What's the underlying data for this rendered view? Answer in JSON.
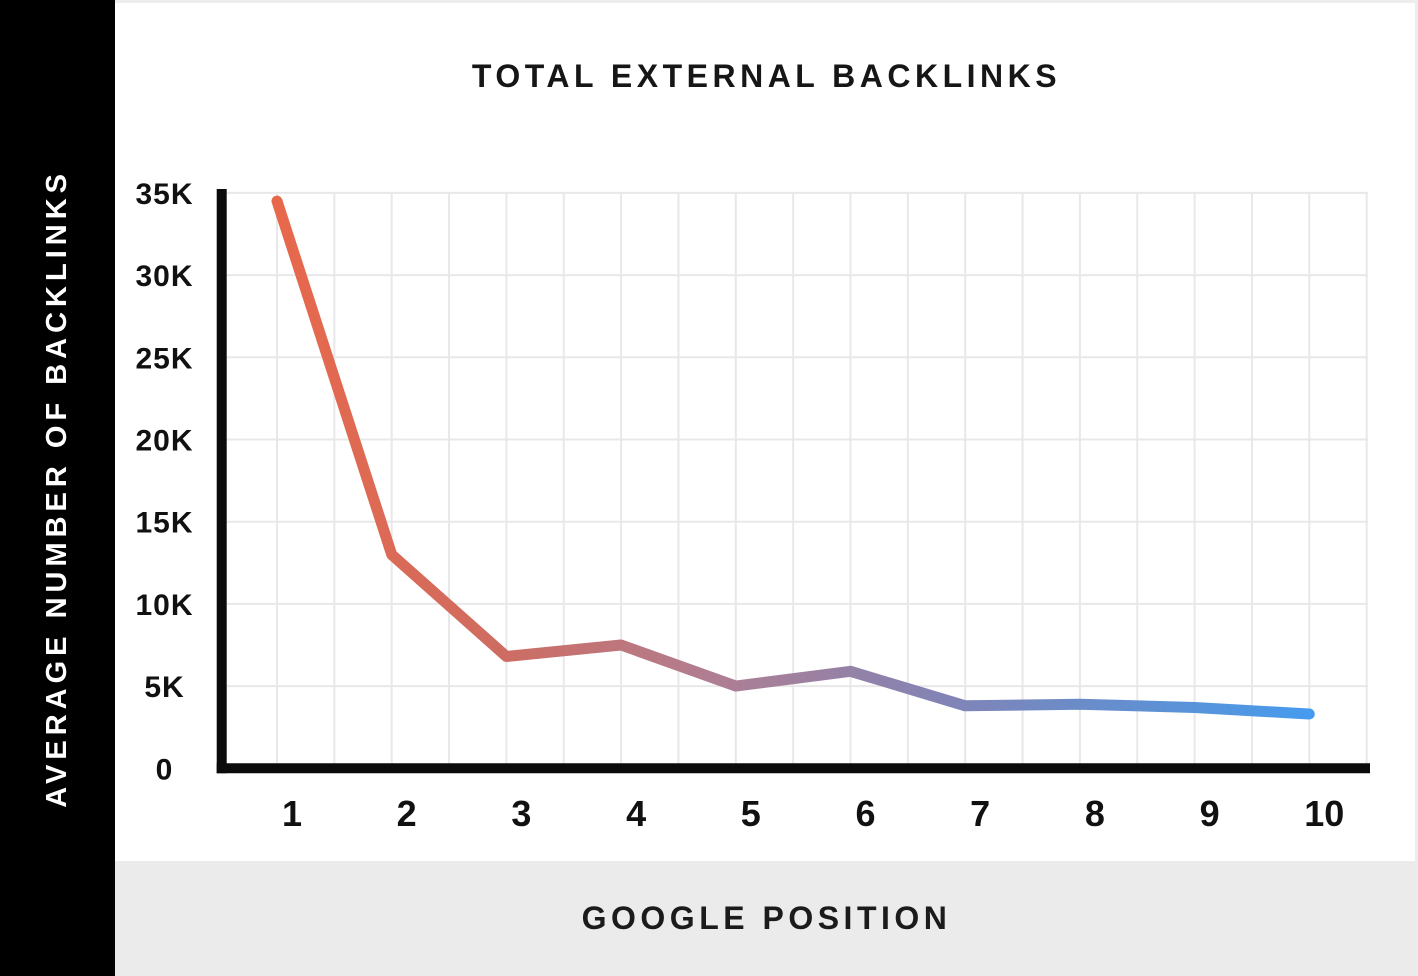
{
  "sidebar": {
    "label": "AVERAGE NUMBER OF BACKLINKS"
  },
  "header": {
    "title": "TOTAL EXTERNAL BACKLINKS"
  },
  "footer": {
    "xlabel": "GOOGLE POSITION"
  },
  "chart_data": {
    "type": "line",
    "title": "TOTAL EXTERNAL BACKLINKS",
    "xlabel": "GOOGLE POSITION",
    "ylabel": "AVERAGE NUMBER OF BACKLINKS",
    "x": [
      1,
      2,
      3,
      4,
      5,
      6,
      7,
      8,
      9,
      10
    ],
    "values": [
      34500,
      13000,
      6800,
      7500,
      5000,
      5900,
      3800,
      3900,
      3700,
      3300
    ],
    "x_tick_labels": [
      "1",
      "2",
      "3",
      "4",
      "5",
      "6",
      "7",
      "8",
      "9",
      "10"
    ],
    "y_ticks": [
      {
        "value": 0,
        "label": "0"
      },
      {
        "value": 5000,
        "label": "5K"
      },
      {
        "value": 10000,
        "label": "10K"
      },
      {
        "value": 15000,
        "label": "15K"
      },
      {
        "value": 20000,
        "label": "20K"
      },
      {
        "value": 25000,
        "label": "25K"
      },
      {
        "value": 30000,
        "label": "30K"
      },
      {
        "value": 35000,
        "label": "35K"
      }
    ],
    "ylim": [
      0,
      35000
    ],
    "grid": true,
    "legend": "none",
    "line_width": 11,
    "line_gradient": [
      {
        "offset": 0.0,
        "color": "#E8684B"
      },
      {
        "offset": 0.22,
        "color": "#CE6C62"
      },
      {
        "offset": 0.42,
        "color": "#B07E92"
      },
      {
        "offset": 0.65,
        "color": "#8184B6"
      },
      {
        "offset": 0.84,
        "color": "#6090D2"
      },
      {
        "offset": 1.0,
        "color": "#469BEE"
      }
    ],
    "colors": {
      "grid": "#e8e8e8",
      "axis": "#0b0b0b",
      "tick_text": "#111111",
      "footer_bg": "#ebebeb",
      "sidebar_bg": "#000000",
      "sidebar_text": "#ffffff"
    }
  }
}
